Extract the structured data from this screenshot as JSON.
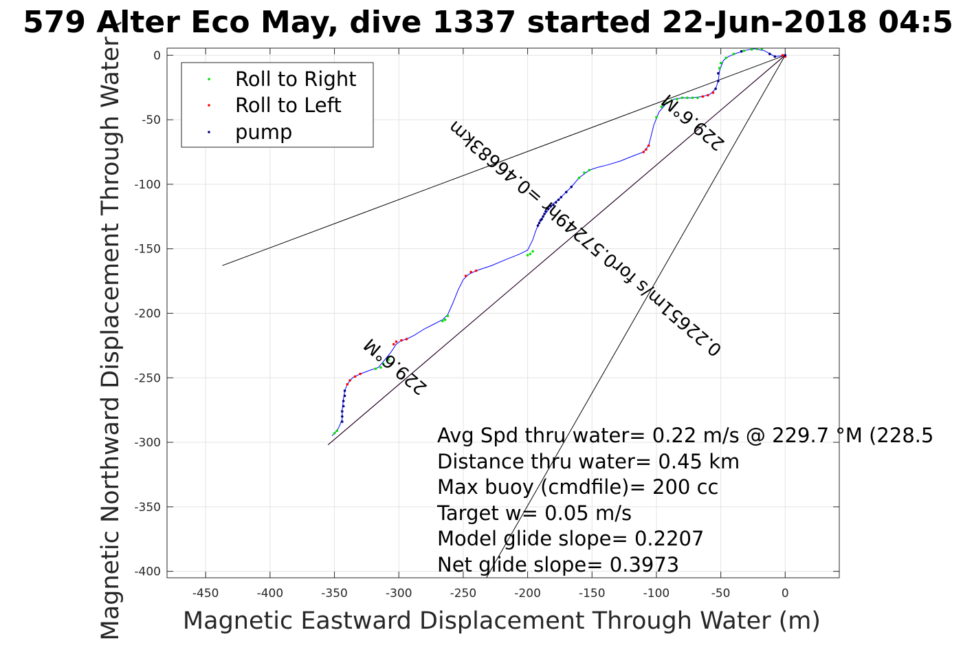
{
  "chart_data": {
    "type": "line",
    "title": "579 Alter Eco May, dive 1337 started 22-Jun-2018 04:5",
    "xlabel": "Magnetic Eastward Displacement Through Water (m)",
    "ylabel": "Magnetic Northward Displacement Through Water (",
    "xlim": [
      -480,
      42
    ],
    "ylim": [
      -405,
      5.5
    ],
    "xticks": [
      -450,
      -400,
      -350,
      -300,
      -250,
      -200,
      -150,
      -100,
      -50,
      0
    ],
    "yticks": [
      0,
      -50,
      -100,
      -150,
      -200,
      -250,
      -300,
      -350,
      -400
    ],
    "grid": true,
    "legend": {
      "placement": "top-left",
      "entries": [
        {
          "label": "Roll to Right",
          "color": "#00e000"
        },
        {
          "label": "Roll to Left",
          "color": "#ff0000"
        },
        {
          "label": "pump",
          "color": "#000080"
        }
      ]
    },
    "track": {
      "color": "#0000ff",
      "points": [
        [
          0,
          0
        ],
        [
          -8,
          -1
        ],
        [
          -16,
          3.5
        ],
        [
          -24,
          5
        ],
        [
          -30,
          4
        ],
        [
          -38,
          1.5
        ],
        [
          -44,
          -1
        ],
        [
          -48,
          -4
        ],
        [
          -51,
          -12
        ],
        [
          -52,
          -20
        ],
        [
          -54,
          -26
        ],
        [
          -58,
          -30
        ],
        [
          -64,
          -32
        ],
        [
          -72,
          -33
        ],
        [
          -80,
          -33
        ],
        [
          -86,
          -34
        ],
        [
          -92,
          -37
        ],
        [
          -98,
          -44
        ],
        [
          -102,
          -54
        ],
        [
          -104,
          -62
        ],
        [
          -106,
          -70
        ],
        [
          -110,
          -75
        ],
        [
          -118,
          -78
        ],
        [
          -128,
          -82
        ],
        [
          -138,
          -85
        ],
        [
          -146,
          -87
        ],
        [
          -152,
          -89
        ],
        [
          -160,
          -95
        ],
        [
          -166,
          -102
        ],
        [
          -170,
          -106
        ],
        [
          -175,
          -111
        ],
        [
          -180,
          -115
        ],
        [
          -184,
          -120
        ],
        [
          -188,
          -125
        ],
        [
          -190,
          -128
        ],
        [
          -192,
          -132
        ],
        [
          -194,
          -137
        ],
        [
          -196,
          -143
        ],
        [
          -200,
          -151
        ],
        [
          -206,
          -154
        ],
        [
          -216,
          -158
        ],
        [
          -228,
          -163
        ],
        [
          -240,
          -167
        ],
        [
          -246,
          -170
        ],
        [
          -250,
          -174
        ],
        [
          -254,
          -182
        ],
        [
          -258,
          -192
        ],
        [
          -262,
          -201
        ],
        [
          -266,
          -205
        ],
        [
          -272,
          -208
        ],
        [
          -280,
          -212
        ],
        [
          -288,
          -217
        ],
        [
          -294,
          -220
        ],
        [
          -298,
          -221
        ],
        [
          -302,
          -224
        ],
        [
          -306,
          -230
        ],
        [
          -310,
          -235
        ],
        [
          -316,
          -242
        ],
        [
          -322,
          -244
        ],
        [
          -330,
          -247
        ],
        [
          -336,
          -250
        ],
        [
          -340,
          -255
        ],
        [
          -342,
          -260
        ],
        [
          -343,
          -266
        ],
        [
          -344,
          -275
        ],
        [
          -344,
          -282
        ],
        [
          -346,
          -287
        ],
        [
          -348,
          -291
        ],
        [
          -352,
          -295
        ]
      ]
    },
    "series": [
      {
        "name": "Roll to Right",
        "color": "#00e000",
        "points": [
          [
            -18,
            5
          ],
          [
            -22,
            5
          ],
          [
            -26,
            4.5
          ],
          [
            -32,
            3.5
          ],
          [
            -40,
            1
          ],
          [
            -46,
            -2
          ],
          [
            -50,
            -6
          ],
          [
            -51,
            -10
          ],
          [
            -68,
            -33
          ],
          [
            -72,
            -33
          ],
          [
            -76,
            -33
          ],
          [
            -80,
            -33
          ],
          [
            -84,
            -34
          ],
          [
            -88,
            -35
          ],
          [
            -92,
            -37
          ],
          [
            -96,
            -40
          ],
          [
            -100,
            -48
          ],
          [
            -152,
            -89
          ],
          [
            -156,
            -91
          ],
          [
            -160,
            -95
          ],
          [
            -196,
            -152
          ],
          [
            -198,
            -154
          ],
          [
            -200,
            -155
          ],
          [
            -262,
            -202
          ],
          [
            -264,
            -205
          ],
          [
            -266,
            -206
          ],
          [
            -308,
            -236
          ],
          [
            -312,
            -239
          ],
          [
            -314,
            -242
          ],
          [
            -318,
            -243
          ],
          [
            -348,
            -291
          ],
          [
            -350,
            -293
          ]
        ]
      },
      {
        "name": "Roll to Left",
        "color": "#ff0000",
        "points": [
          [
            0,
            -1
          ],
          [
            -2,
            0
          ],
          [
            -56,
            -29
          ],
          [
            -60,
            -31
          ],
          [
            -64,
            -32
          ],
          [
            -106,
            -70
          ],
          [
            -108,
            -73
          ],
          [
            -110,
            -75
          ],
          [
            -240,
            -167
          ],
          [
            -244,
            -168
          ],
          [
            -248,
            -171
          ],
          [
            -294,
            -220
          ],
          [
            -298,
            -221
          ],
          [
            -302,
            -222
          ],
          [
            -304,
            -224
          ],
          [
            -330,
            -247
          ],
          [
            -334,
            -249
          ],
          [
            -338,
            -252
          ],
          [
            -340,
            -255
          ]
        ]
      },
      {
        "name": "pump",
        "color": "#000080",
        "points": [
          [
            0,
            0
          ],
          [
            -8,
            -1
          ],
          [
            -12,
            1
          ],
          [
            -34,
            3
          ],
          [
            -52,
            -14
          ],
          [
            -52,
            -20
          ],
          [
            -54,
            -26
          ],
          [
            -166,
            -102
          ],
          [
            -170,
            -106
          ],
          [
            -174,
            -110
          ],
          [
            -176,
            -112
          ],
          [
            -178,
            -114
          ],
          [
            -180,
            -116
          ],
          [
            -182,
            -117
          ],
          [
            -184,
            -119
          ],
          [
            -186,
            -121
          ],
          [
            -187,
            -123
          ],
          [
            -188,
            -125
          ],
          [
            -189,
            -127
          ],
          [
            -190,
            -128
          ],
          [
            -191,
            -130
          ],
          [
            -192,
            -132
          ],
          [
            -342,
            -260
          ],
          [
            -342,
            -264
          ],
          [
            -343,
            -268
          ],
          [
            -343,
            -272
          ],
          [
            -344,
            -276
          ],
          [
            -344,
            -280
          ],
          [
            -344,
            -284
          ]
        ]
      }
    ],
    "reference_lines": [
      {
        "color": "#000000",
        "from": [
          0,
          0
        ],
        "to": [
          -437,
          -163
        ]
      },
      {
        "color": "#000000",
        "from": [
          0,
          0
        ],
        "to": [
          -232,
          -405
        ]
      },
      {
        "color": "#ff00ff",
        "from": [
          0,
          0
        ],
        "to": [
          -355,
          -302
        ]
      },
      {
        "color": "#000000",
        "from": [
          0,
          0
        ],
        "to": [
          -355,
          -302
        ]
      }
    ],
    "annotations": {
      "heading_upper": "229.6°M",
      "heading_lower": "229.6°M",
      "distance": "0.22651m/s for0.57249hr =0.46683km",
      "stats": [
        "Avg Spd thru water=  0.22 m/s @ 229.7 °M (228.5",
        "Distance thru water=  0.45 km",
        "Max buoy (cmdfile)= 200 cc",
        "Target w= 0.05 m/s",
        "Model glide slope= 0.2207",
        "Net glide slope= 0.3973"
      ]
    }
  }
}
